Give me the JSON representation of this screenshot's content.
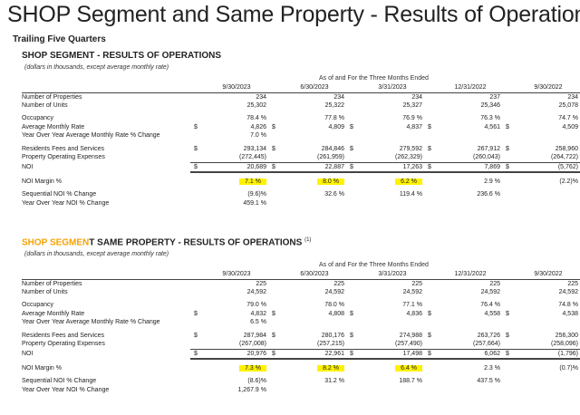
{
  "title": "SHOP Segment and Same Property - Results of Operations",
  "subtitle": "Trailing Five Quarters",
  "sections": [
    {
      "title_main": "SHOP SEGMENT - RESULTS OF OPERATIONS",
      "title_sup": "",
      "note": "(dollars in thousands, except average monthly rate)",
      "as_of": "As of and For the Three Months Ended",
      "periods": [
        "9/30/2023",
        "6/30/2023",
        "3/31/2023",
        "12/31/2022",
        "9/30/2022"
      ],
      "rows": [
        {
          "label": "Number of Properties",
          "values": [
            "234",
            "234",
            "234",
            "237",
            "234"
          ]
        },
        {
          "label": "Number of Units",
          "values": [
            "25,302",
            "25,322",
            "25,327",
            "25,346",
            "25,078"
          ]
        },
        {
          "label": "Occupancy",
          "values": [
            "78.4 %",
            "77.8 %",
            "76.9 %",
            "76.3 %",
            "74.7 %"
          ]
        },
        {
          "label": "Average Monthly Rate",
          "values": [
            "4,826",
            "4,809",
            "4,837",
            "4,561",
            "4,509"
          ]
        },
        {
          "label": "Year Over Year Average Monthly Rate % Change",
          "values": [
            "7.0 %",
            "",
            "",
            "",
            ""
          ]
        },
        {
          "label": "Residents Fees and Services",
          "values": [
            "293,134",
            "284,846",
            "279,592",
            "267,912",
            "258,960"
          ]
        },
        {
          "label": "Property Operating Expenses",
          "values": [
            "(272,445)",
            "(261,959)",
            "(262,329)",
            "(260,043)",
            "(264,722)"
          ]
        },
        {
          "label": "NOI",
          "values": [
            "20,689",
            "22,887",
            "17,263",
            "7,869",
            "(5,762)"
          ]
        },
        {
          "label": "NOI Margin %",
          "values": [
            "7.1 %",
            "8.0 %",
            "6.2 %",
            "2.9 %",
            "(2.2)%"
          ]
        },
        {
          "label": "Sequential NOI % Change",
          "values": [
            "(9.6)%",
            "32.6 %",
            "119.4 %",
            "236.6 %",
            ""
          ]
        },
        {
          "label": "Year Over Year NOI % Change",
          "values": [
            "459.1 %",
            "",
            "",
            "",
            ""
          ]
        }
      ]
    },
    {
      "title_main": "SHOP SEGMENT SAME PROPERTY - RESULTS OF OPERATIONS",
      "title_sup": "(1)",
      "note": "(dollars in thousands, except average monthly rate)",
      "as_of": "As of and For the Three Months Ended",
      "periods": [
        "9/30/2023",
        "6/30/2023",
        "3/31/2023",
        "12/31/2022",
        "9/30/2022"
      ],
      "rows": [
        {
          "label": "Number of Properties",
          "values": [
            "225",
            "225",
            "225",
            "225",
            "225"
          ]
        },
        {
          "label": "Number of Units",
          "values": [
            "24,592",
            "24,592",
            "24,592",
            "24,592",
            "24,592"
          ]
        },
        {
          "label": "Occupancy",
          "values": [
            "79.0 %",
            "78.0 %",
            "77.1 %",
            "76.4 %",
            "74.8 %"
          ]
        },
        {
          "label": "Average Monthly Rate",
          "values": [
            "4,832",
            "4,808",
            "4,836",
            "4,558",
            "4,538"
          ]
        },
        {
          "label": "Year Over Year Average Monthly Rate % Change",
          "values": [
            "6.5 %",
            "",
            "",
            "",
            ""
          ]
        },
        {
          "label": "Residents Fees and Services",
          "values": [
            "287,984",
            "280,176",
            "274,988",
            "263,726",
            "256,300"
          ]
        },
        {
          "label": "Property Operating Expenses",
          "values": [
            "(267,008)",
            "(257,215)",
            "(257,490)",
            "(257,664)",
            "(258,096)"
          ]
        },
        {
          "label": "NOI",
          "values": [
            "20,976",
            "22,961",
            "17,498",
            "6,062",
            "(1,796)"
          ]
        },
        {
          "label": "NOI Margin %",
          "values": [
            "7.3 %",
            "8.2 %",
            "6.4 %",
            "2.3 %",
            "(0.7)%"
          ]
        },
        {
          "label": "Sequential NOI % Change",
          "values": [
            "(8.6)%",
            "31.2 %",
            "188.7 %",
            "437.5 %",
            ""
          ]
        },
        {
          "label": "Year Over Year NOI % Change",
          "values": [
            "1,267.9 %",
            "",
            "",
            "",
            ""
          ]
        }
      ]
    }
  ],
  "currency_symbol": "$",
  "highlight_color": "#fff200"
}
